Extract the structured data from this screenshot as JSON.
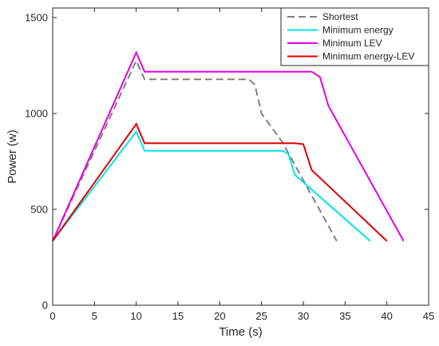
{
  "chart_data": {
    "type": "line",
    "xlabel": "Time (s)",
    "ylabel": "Power (w)",
    "xlim": [
      0,
      45
    ],
    "ylim": [
      0,
      1550
    ],
    "xticks": [
      0,
      5,
      10,
      15,
      20,
      25,
      30,
      35,
      40,
      45
    ],
    "yticks": [
      0,
      500,
      1000,
      1500
    ],
    "grid": false,
    "legend_position": "top-right",
    "series": [
      {
        "name": "Shortest",
        "color": "#808080",
        "dash": "dashed",
        "points": [
          [
            0,
            335
          ],
          [
            10,
            1275
          ],
          [
            11,
            1178
          ],
          [
            23.5,
            1178
          ],
          [
            24.2,
            1150
          ],
          [
            25,
            1000
          ],
          [
            27.5,
            850
          ],
          [
            34,
            335
          ]
        ]
      },
      {
        "name": "Minimum energy",
        "color": "#00E5E5",
        "dash": "solid",
        "points": [
          [
            0,
            335
          ],
          [
            10,
            905
          ],
          [
            11,
            805
          ],
          [
            27.5,
            805
          ],
          [
            28.2,
            790
          ],
          [
            29,
            680
          ],
          [
            38,
            335
          ]
        ]
      },
      {
        "name": "Minimum LEV",
        "color": "#E500E5",
        "dash": "solid",
        "points": [
          [
            0,
            335
          ],
          [
            10,
            1318
          ],
          [
            11,
            1218
          ],
          [
            31,
            1218
          ],
          [
            32,
            1190
          ],
          [
            33,
            1040
          ],
          [
            42,
            335
          ]
        ]
      },
      {
        "name": "Minimum energy-LEV",
        "color": "#E00000",
        "dash": "solid",
        "points": [
          [
            0,
            335
          ],
          [
            10,
            945
          ],
          [
            11,
            845
          ],
          [
            29,
            845
          ],
          [
            30,
            840
          ],
          [
            31,
            705
          ],
          [
            40,
            335
          ]
        ]
      }
    ]
  }
}
